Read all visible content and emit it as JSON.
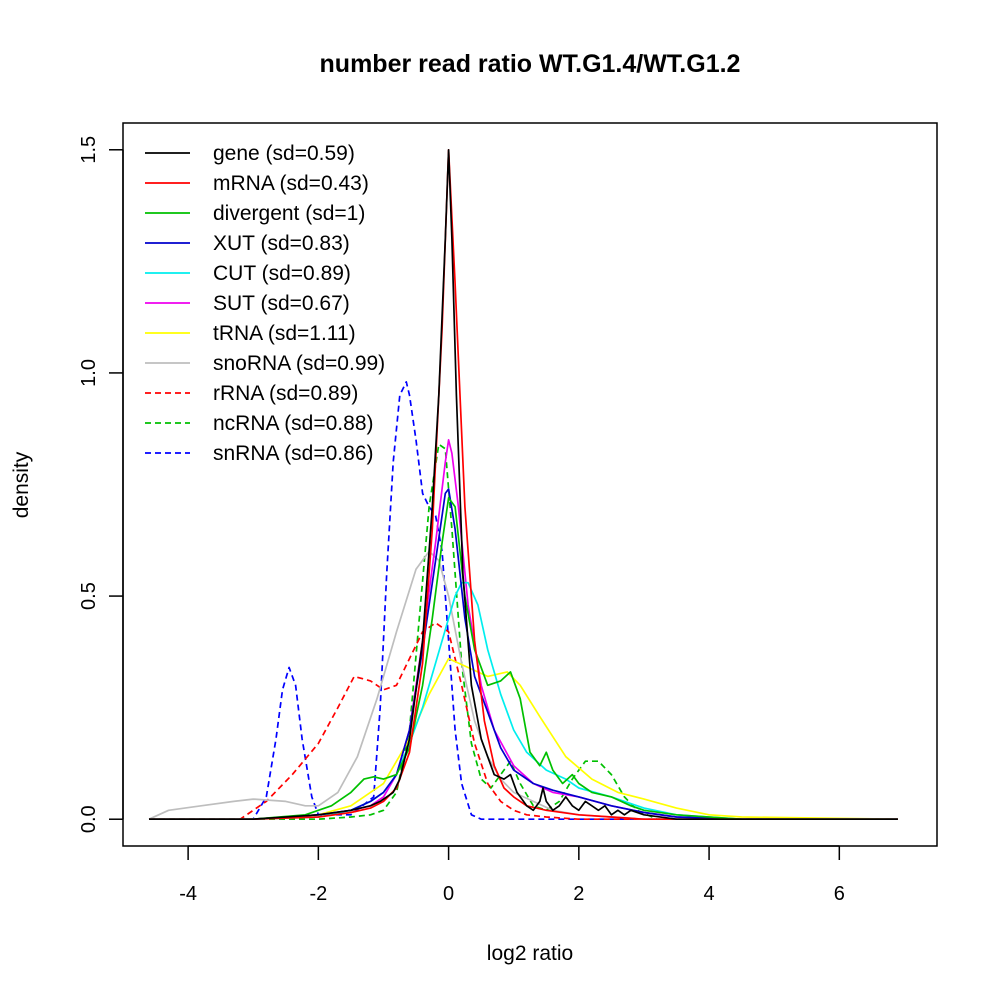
{
  "chart_data": {
    "type": "line",
    "title": "number read ratio WT.G1.4/WT.G1.2",
    "xlabel": "log2 ratio",
    "ylabel": "density",
    "xlim": [
      -5.0,
      7.5
    ],
    "ylim": [
      -0.06,
      1.56
    ],
    "x_ticks": [
      -4,
      -2,
      0,
      2,
      4,
      6
    ],
    "x_tick_labels": [
      "-4",
      "-2",
      "0",
      "2",
      "4",
      "6"
    ],
    "y_ticks": [
      0.0,
      0.5,
      1.0,
      1.5
    ],
    "y_tick_labels": [
      "0.0",
      "0.5",
      "1.0",
      "1.5"
    ],
    "legend_position": "top-left",
    "series": [
      {
        "name": "gene (sd=0.59)",
        "color": "#000000",
        "dash": "solid",
        "x": [
          -4.6,
          -3.0,
          -2.0,
          -1.5,
          -1.2,
          -1.05,
          -0.95,
          -0.85,
          -0.75,
          -0.6,
          -0.4,
          -0.25,
          -0.15,
          -0.05,
          0.0,
          0.05,
          0.12,
          0.22,
          0.35,
          0.5,
          0.7,
          0.85,
          0.95,
          1.05,
          1.2,
          1.3,
          1.4,
          1.45,
          1.5,
          1.6,
          1.7,
          1.8,
          1.9,
          2.0,
          2.1,
          2.2,
          2.3,
          2.4,
          2.5,
          2.6,
          2.7,
          2.8,
          3.0,
          3.5,
          4.5,
          6.9
        ],
        "y": [
          0.0,
          0.0,
          0.01,
          0.02,
          0.03,
          0.04,
          0.05,
          0.06,
          0.09,
          0.18,
          0.4,
          0.7,
          0.95,
          1.3,
          1.5,
          1.3,
          0.95,
          0.55,
          0.3,
          0.18,
          0.1,
          0.09,
          0.1,
          0.06,
          0.03,
          0.02,
          0.04,
          0.07,
          0.04,
          0.02,
          0.03,
          0.05,
          0.03,
          0.02,
          0.04,
          0.03,
          0.02,
          0.03,
          0.01,
          0.02,
          0.01,
          0.02,
          0.01,
          0.0,
          0.0,
          0.0
        ]
      },
      {
        "name": "mRNA (sd=0.43)",
        "color": "#ff0000",
        "dash": "solid",
        "x": [
          -4.6,
          -3.0,
          -2.0,
          -1.5,
          -1.2,
          -1.0,
          -0.8,
          -0.6,
          -0.4,
          -0.25,
          -0.1,
          0.0,
          0.1,
          0.25,
          0.4,
          0.55,
          0.7,
          0.85,
          1.0,
          1.2,
          1.5,
          2.0,
          2.5,
          3.0,
          4.0,
          6.9
        ],
        "y": [
          0.0,
          0.0,
          0.005,
          0.015,
          0.025,
          0.04,
          0.07,
          0.15,
          0.35,
          0.65,
          1.1,
          1.5,
          1.2,
          0.7,
          0.4,
          0.22,
          0.12,
          0.07,
          0.05,
          0.03,
          0.02,
          0.01,
          0.005,
          0.0,
          0.0,
          0.0
        ]
      },
      {
        "name": "divergent (sd=1)",
        "color": "#00c000",
        "dash": "solid",
        "x": [
          -4.6,
          -3.0,
          -2.2,
          -1.8,
          -1.5,
          -1.3,
          -1.15,
          -1.0,
          -0.8,
          -0.6,
          -0.4,
          -0.25,
          -0.1,
          0.0,
          0.1,
          0.25,
          0.4,
          0.6,
          0.8,
          0.95,
          1.1,
          1.25,
          1.4,
          1.5,
          1.6,
          1.75,
          1.9,
          2.0,
          2.2,
          2.5,
          2.8,
          3.0,
          3.5,
          4.5,
          6.9
        ],
        "y": [
          0.0,
          0.0,
          0.01,
          0.03,
          0.06,
          0.09,
          0.095,
          0.09,
          0.1,
          0.16,
          0.3,
          0.45,
          0.62,
          0.72,
          0.7,
          0.5,
          0.38,
          0.3,
          0.31,
          0.33,
          0.27,
          0.15,
          0.12,
          0.15,
          0.11,
          0.08,
          0.1,
          0.08,
          0.06,
          0.05,
          0.03,
          0.02,
          0.01,
          0.0,
          0.0
        ]
      },
      {
        "name": "XUT (sd=0.83)",
        "color": "#0000cc",
        "dash": "solid",
        "x": [
          -4.6,
          -3.0,
          -2.0,
          -1.5,
          -1.2,
          -1.0,
          -0.8,
          -0.6,
          -0.4,
          -0.2,
          -0.05,
          0.0,
          0.1,
          0.25,
          0.4,
          0.6,
          0.8,
          1.0,
          1.3,
          1.6,
          2.0,
          2.5,
          3.0,
          3.5,
          4.5,
          6.9
        ],
        "y": [
          0.0,
          0.0,
          0.01,
          0.02,
          0.04,
          0.06,
          0.1,
          0.2,
          0.38,
          0.58,
          0.73,
          0.74,
          0.65,
          0.45,
          0.32,
          0.24,
          0.16,
          0.11,
          0.08,
          0.065,
          0.05,
          0.03,
          0.015,
          0.005,
          0.0,
          0.0
        ]
      },
      {
        "name": "CUT (sd=0.89)",
        "color": "#00eeee",
        "dash": "solid",
        "x": [
          -4.6,
          -3.0,
          -2.0,
          -1.5,
          -1.2,
          -1.0,
          -0.8,
          -0.6,
          -0.4,
          -0.2,
          0.0,
          0.1,
          0.2,
          0.3,
          0.45,
          0.6,
          0.8,
          1.0,
          1.2,
          1.5,
          1.8,
          2.0,
          2.5,
          3.0,
          3.5,
          4.5,
          6.9
        ],
        "y": [
          0.0,
          0.0,
          0.005,
          0.02,
          0.04,
          0.06,
          0.1,
          0.17,
          0.25,
          0.35,
          0.45,
          0.5,
          0.53,
          0.53,
          0.48,
          0.38,
          0.28,
          0.2,
          0.15,
          0.11,
          0.09,
          0.07,
          0.05,
          0.025,
          0.01,
          0.0,
          0.0
        ]
      },
      {
        "name": "SUT (sd=0.67)",
        "color": "#ee00ee",
        "dash": "solid",
        "x": [
          -4.6,
          -3.0,
          -2.0,
          -1.5,
          -1.2,
          -1.0,
          -0.8,
          -0.6,
          -0.4,
          -0.2,
          -0.05,
          0.0,
          0.05,
          0.15,
          0.3,
          0.5,
          0.7,
          1.0,
          1.3,
          1.6,
          2.0,
          2.5,
          3.0,
          3.5,
          4.5,
          6.9
        ],
        "y": [
          0.0,
          0.0,
          0.01,
          0.02,
          0.03,
          0.05,
          0.1,
          0.2,
          0.4,
          0.62,
          0.8,
          0.85,
          0.82,
          0.7,
          0.48,
          0.3,
          0.2,
          0.12,
          0.08,
          0.06,
          0.05,
          0.03,
          0.015,
          0.005,
          0.0,
          0.0
        ]
      },
      {
        "name": "tRNA (sd=1.11)",
        "color": "#ffff00",
        "dash": "solid",
        "x": [
          -4.6,
          -3.0,
          -2.0,
          -1.5,
          -1.0,
          -0.6,
          -0.3,
          0.0,
          0.3,
          0.6,
          0.9,
          1.1,
          1.4,
          1.8,
          2.2,
          2.6,
          3.0,
          3.5,
          4.0,
          4.5,
          6.9
        ],
        "y": [
          0.0,
          0.0,
          0.01,
          0.03,
          0.08,
          0.18,
          0.28,
          0.36,
          0.34,
          0.32,
          0.33,
          0.3,
          0.23,
          0.14,
          0.09,
          0.06,
          0.045,
          0.025,
          0.01,
          0.005,
          0.0
        ]
      },
      {
        "name": "snoRNA (sd=0.99)",
        "color": "#bebebe",
        "dash": "solid",
        "x": [
          -4.6,
          -4.3,
          -3.8,
          -3.3,
          -3.0,
          -2.5,
          -2.2,
          -2.0,
          -1.7,
          -1.4,
          -1.1,
          -0.8,
          -0.5,
          -0.3,
          -0.15,
          0.0,
          0.2,
          0.4,
          0.6,
          0.8,
          1.0,
          1.3,
          1.6,
          2.0,
          2.5,
          3.0,
          4.0,
          6.9
        ],
        "y": [
          0.0,
          0.02,
          0.03,
          0.04,
          0.045,
          0.04,
          0.03,
          0.03,
          0.06,
          0.14,
          0.27,
          0.42,
          0.56,
          0.6,
          0.58,
          0.5,
          0.35,
          0.22,
          0.14,
          0.09,
          0.06,
          0.04,
          0.02,
          0.01,
          0.005,
          0.0,
          0.0,
          0.0
        ]
      },
      {
        "name": "rRNA (sd=0.89)",
        "color": "#ff0000",
        "dash": "dashed",
        "x": [
          -4.6,
          -3.2,
          -2.8,
          -2.4,
          -2.0,
          -1.7,
          -1.45,
          -1.2,
          -1.0,
          -0.8,
          -0.6,
          -0.4,
          -0.2,
          0.0,
          0.2,
          0.4,
          0.6,
          0.8,
          1.0,
          1.2,
          1.5,
          2.0,
          2.5,
          3.0,
          4.0,
          6.9
        ],
        "y": [
          0.0,
          0.0,
          0.04,
          0.1,
          0.17,
          0.25,
          0.32,
          0.31,
          0.29,
          0.3,
          0.36,
          0.42,
          0.44,
          0.42,
          0.3,
          0.17,
          0.08,
          0.04,
          0.02,
          0.01,
          0.005,
          0.0,
          0.0,
          0.0,
          0.0,
          0.0
        ]
      },
      {
        "name": "ncRNA (sd=0.88)",
        "color": "#00c000",
        "dash": "dashed",
        "x": [
          -4.6,
          -2.0,
          -1.5,
          -1.2,
          -1.0,
          -0.8,
          -0.6,
          -0.45,
          -0.3,
          -0.15,
          -0.05,
          0.05,
          0.2,
          0.35,
          0.5,
          0.65,
          0.8,
          0.95,
          1.1,
          1.3,
          1.5,
          1.7,
          1.9,
          2.1,
          2.3,
          2.5,
          2.7,
          2.9,
          3.2,
          4.0,
          6.9
        ],
        "y": [
          0.0,
          0.0,
          0.005,
          0.01,
          0.02,
          0.06,
          0.2,
          0.45,
          0.7,
          0.84,
          0.83,
          0.65,
          0.35,
          0.17,
          0.09,
          0.07,
          0.1,
          0.13,
          0.08,
          0.03,
          0.02,
          0.04,
          0.09,
          0.13,
          0.13,
          0.1,
          0.05,
          0.02,
          0.0,
          0.0,
          0.0
        ]
      },
      {
        "name": "snRNA (sd=0.86)",
        "color": "#0000ff",
        "dash": "dashed",
        "x": [
          -4.6,
          -3.0,
          -2.8,
          -2.65,
          -2.55,
          -2.45,
          -2.35,
          -2.25,
          -2.1,
          -2.0,
          -1.5,
          -1.15,
          -1.05,
          -0.95,
          -0.85,
          -0.75,
          -0.65,
          -0.6,
          -0.5,
          -0.4,
          -0.3,
          -0.2,
          -0.1,
          0.0,
          0.1,
          0.2,
          0.35,
          0.5,
          1.0,
          6.9
        ],
        "y": [
          0.0,
          0.0,
          0.05,
          0.18,
          0.29,
          0.34,
          0.3,
          0.18,
          0.05,
          0.01,
          0.01,
          0.05,
          0.25,
          0.55,
          0.8,
          0.95,
          0.98,
          0.95,
          0.85,
          0.73,
          0.7,
          0.68,
          0.6,
          0.4,
          0.2,
          0.08,
          0.01,
          0.0,
          0.0,
          0.0
        ]
      }
    ]
  }
}
